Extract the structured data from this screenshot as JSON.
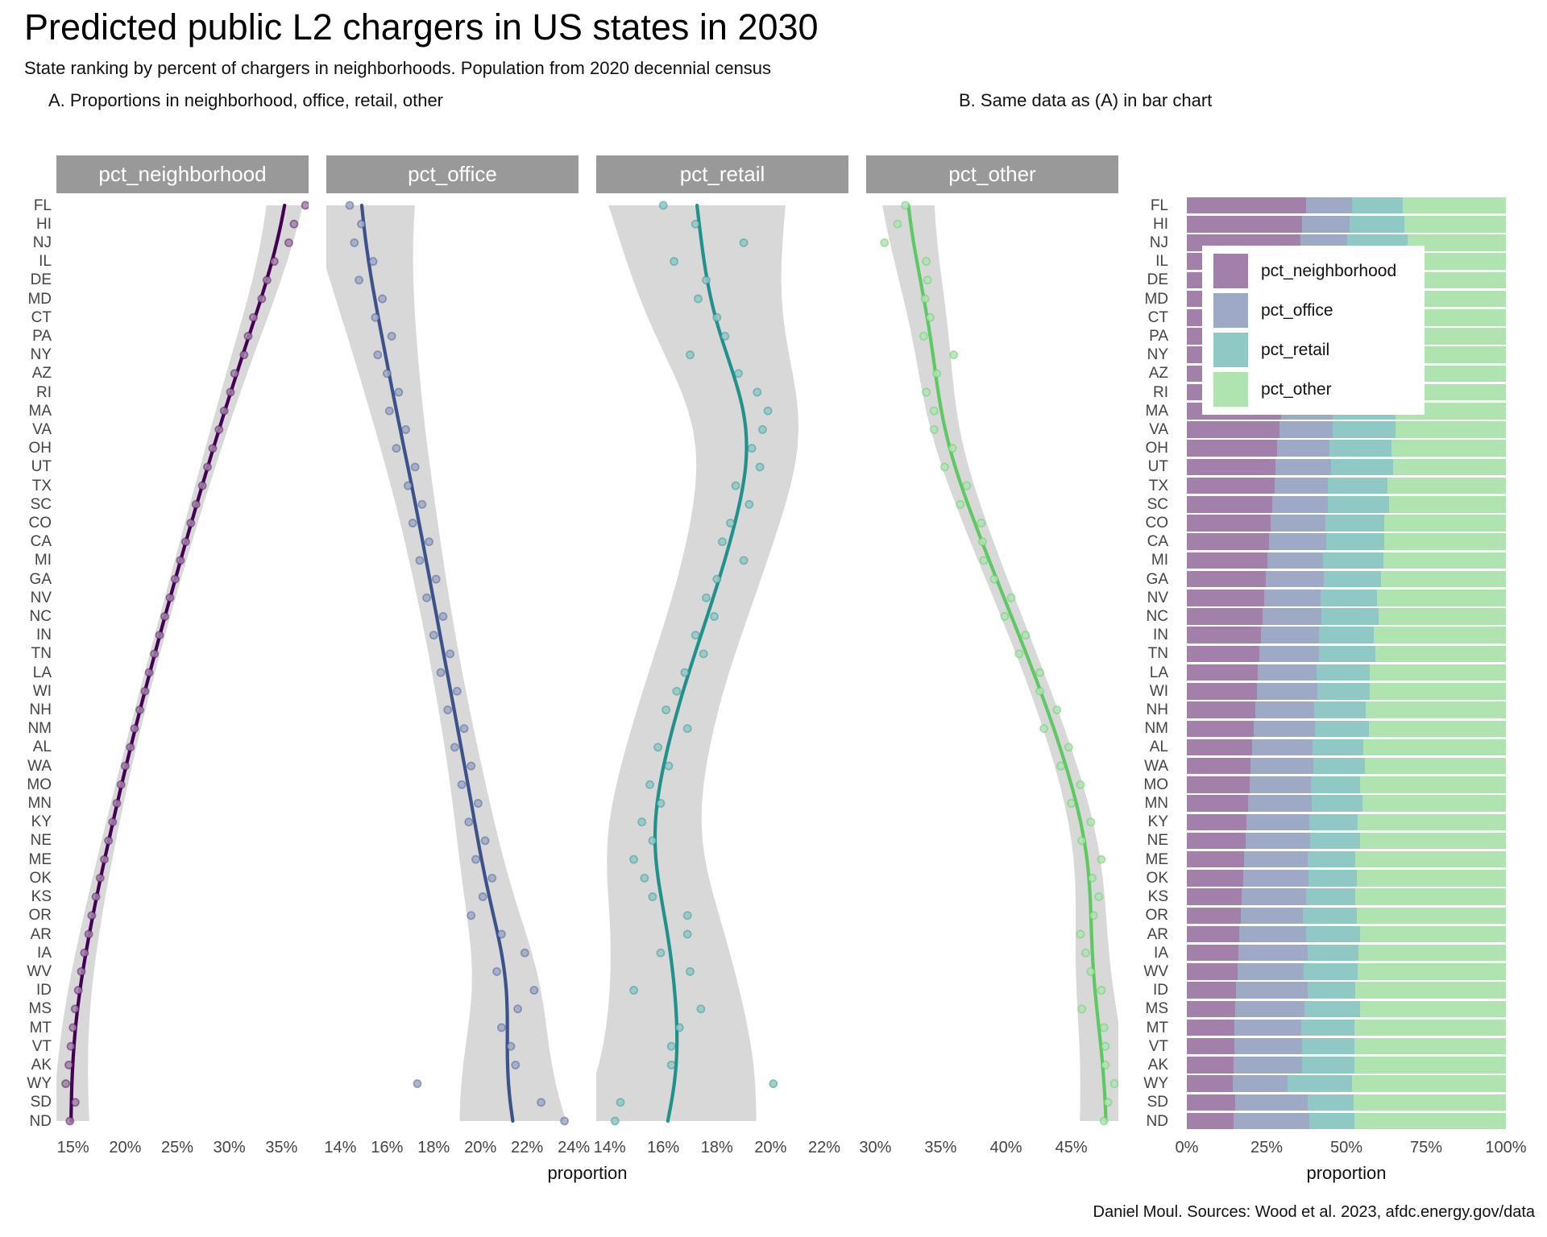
{
  "header": {
    "title": "Predicted public L2 chargers in US states in 2030",
    "subtitle": "State ranking by percent of chargers in neighborhoods. Population from 2020 decennial census"
  },
  "panelA": {
    "title": "A. Proportions in neighborhood, office, retail, other",
    "xlabel": "proportion",
    "facets": [
      {
        "range": [
          13.4,
          37.6
        ],
        "ticks": [
          {
            "v": 15,
            "t": "15%"
          },
          {
            "v": 20,
            "t": "20%"
          },
          {
            "v": 25,
            "t": "25%"
          },
          {
            "v": 30,
            "t": "30%"
          },
          {
            "v": 35,
            "t": "35%"
          }
        ]
      },
      {
        "range": [
          13.4,
          24.2
        ],
        "ticks": [
          {
            "v": 14,
            "t": "14%"
          },
          {
            "v": 16,
            "t": "16%"
          },
          {
            "v": 18,
            "t": "18%"
          },
          {
            "v": 20,
            "t": "20%"
          },
          {
            "v": 22,
            "t": "22%"
          },
          {
            "v": 24,
            "t": "24%"
          }
        ]
      },
      {
        "range": [
          13.5,
          22.9
        ],
        "ticks": [
          {
            "v": 14,
            "t": "14%"
          },
          {
            "v": 16,
            "t": "16%"
          },
          {
            "v": 18,
            "t": "18%"
          },
          {
            "v": 20,
            "t": "20%"
          },
          {
            "v": 22,
            "t": "22%"
          }
        ]
      },
      {
        "range": [
          29.3,
          48.6
        ],
        "ticks": [
          {
            "v": 30,
            "t": "30%"
          },
          {
            "v": 35,
            "t": "35%"
          },
          {
            "v": 40,
            "t": "40%"
          },
          {
            "v": 45,
            "t": "45%"
          }
        ]
      }
    ]
  },
  "panelB": {
    "title": "B. Same data as (A) in bar chart",
    "xlabel": "proportion",
    "ticks": [
      {
        "v": 0,
        "t": "0%"
      },
      {
        "v": 25,
        "t": "25%"
      },
      {
        "v": 50,
        "t": "50%"
      },
      {
        "v": 75,
        "t": "75%"
      },
      {
        "v": 100,
        "t": "100%"
      }
    ]
  },
  "caption": {
    "text": "Daniel Moul. Sources: Wood et al. 2023, afdc.energy.gov/data"
  },
  "chart_data": {
    "type": [
      "scatter-smooth-faceted",
      "stacked-bar-horizontal"
    ],
    "band_color": "#c9c9c9",
    "strip_color": "#999999",
    "states": [
      "FL",
      "HI",
      "NJ",
      "IL",
      "DE",
      "MD",
      "CT",
      "PA",
      "NY",
      "AZ",
      "RI",
      "MA",
      "VA",
      "OH",
      "UT",
      "TX",
      "SC",
      "CO",
      "CA",
      "MI",
      "GA",
      "NV",
      "NC",
      "IN",
      "TN",
      "LA",
      "WI",
      "NH",
      "NM",
      "AL",
      "WA",
      "MO",
      "MN",
      "KY",
      "NE",
      "ME",
      "OK",
      "KS",
      "OR",
      "AR",
      "IA",
      "WV",
      "ID",
      "MS",
      "MT",
      "VT",
      "AK",
      "WY",
      "SD",
      "ND"
    ],
    "series": [
      {
        "name": "pct_neighborhood",
        "line_color": "#440154",
        "fill_color": "#a280aa",
        "values": [
          37.3,
          36.2,
          35.7,
          34.3,
          33.6,
          33.1,
          32.3,
          31.8,
          31.4,
          30.5,
          30.1,
          29.5,
          29.0,
          28.4,
          27.9,
          27.4,
          26.8,
          26.3,
          25.8,
          25.3,
          24.8,
          24.3,
          23.8,
          23.3,
          22.8,
          22.3,
          21.9,
          21.4,
          20.9,
          20.5,
          20.0,
          19.6,
          19.2,
          18.8,
          18.4,
          18.0,
          17.6,
          17.2,
          16.8,
          16.5,
          16.1,
          15.8,
          15.5,
          15.2,
          15.0,
          14.8,
          14.6,
          14.3,
          15.2,
          14.7
        ]
      },
      {
        "name": "pct_office",
        "line_color": "#3b528b",
        "fill_color": "#9da9c5",
        "values": [
          14.4,
          14.9,
          14.6,
          15.4,
          14.8,
          15.8,
          15.5,
          16.2,
          15.6,
          16.0,
          16.5,
          16.1,
          16.8,
          16.4,
          17.2,
          16.9,
          17.5,
          17.1,
          17.8,
          17.4,
          18.1,
          17.7,
          18.4,
          18.0,
          18.7,
          18.3,
          19.0,
          18.6,
          19.3,
          18.9,
          19.6,
          19.2,
          19.9,
          19.5,
          20.2,
          19.8,
          20.5,
          20.1,
          19.6,
          20.9,
          21.9,
          20.7,
          22.3,
          21.6,
          20.9,
          21.3,
          21.5,
          17.3,
          22.6,
          23.6
        ]
      },
      {
        "name": "pct_retail",
        "line_color": "#21918c",
        "fill_color": "#90c8c5",
        "values": [
          16.0,
          17.2,
          19.0,
          16.4,
          17.6,
          17.3,
          18.0,
          18.3,
          17.0,
          18.8,
          19.5,
          19.9,
          19.7,
          19.3,
          19.6,
          18.7,
          19.2,
          18.5,
          18.2,
          19.0,
          18.0,
          17.6,
          17.9,
          17.2,
          17.5,
          16.8,
          16.5,
          16.1,
          16.9,
          15.8,
          16.2,
          15.5,
          15.9,
          15.2,
          15.6,
          14.9,
          15.3,
          15.6,
          16.9,
          16.9,
          15.9,
          17.0,
          14.9,
          17.4,
          16.6,
          16.3,
          16.3,
          20.1,
          14.4,
          14.2
        ]
      },
      {
        "name": "pct_other",
        "line_color": "#5ec962",
        "fill_color": "#afe4b0",
        "values": [
          32.3,
          31.7,
          30.7,
          33.9,
          34.0,
          33.8,
          34.2,
          33.7,
          36.0,
          34.7,
          33.9,
          34.5,
          34.5,
          35.9,
          35.3,
          37.0,
          36.5,
          38.1,
          38.2,
          38.3,
          39.1,
          40.4,
          39.9,
          41.5,
          41.0,
          42.6,
          42.6,
          43.9,
          42.9,
          44.8,
          44.2,
          45.7,
          45.0,
          46.5,
          45.8,
          47.3,
          46.6,
          47.1,
          46.7,
          45.7,
          46.1,
          46.5,
          47.3,
          45.8,
          47.5,
          47.6,
          47.6,
          48.3,
          47.8,
          47.5
        ]
      }
    ],
    "bar_axis": {
      "range": [
        0,
        100
      ],
      "tick_labels": [
        "0%",
        "25%",
        "50%",
        "75%",
        "100%"
      ]
    }
  }
}
